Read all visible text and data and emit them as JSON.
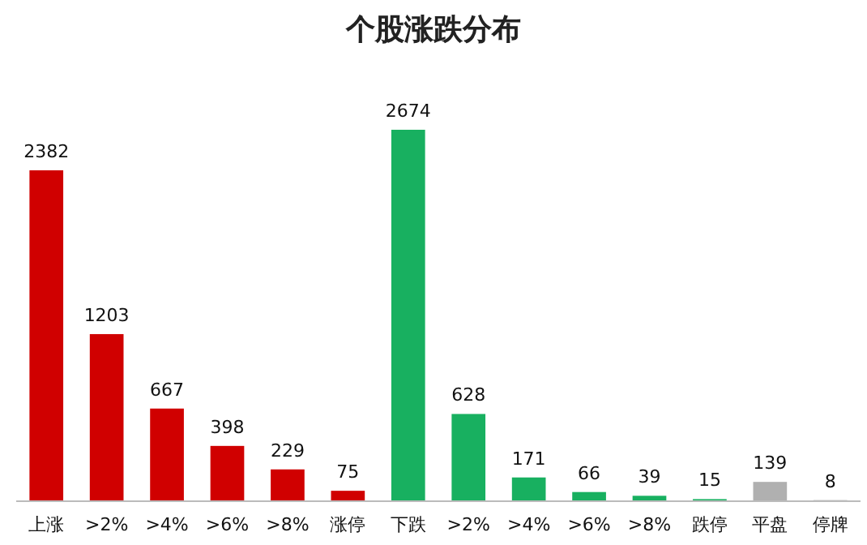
{
  "chart_data": {
    "type": "bar",
    "title": "个股涨跌分布",
    "categories": [
      "上涨",
      ">2%",
      ">4%",
      ">6%",
      ">8%",
      "涨停",
      "下跌",
      ">2%",
      ">4%",
      ">6%",
      ">8%",
      "跌停",
      "平盘",
      "停牌"
    ],
    "values": [
      2382,
      1203,
      667,
      398,
      229,
      75,
      2674,
      628,
      171,
      66,
      39,
      15,
      139,
      8
    ],
    "colors": [
      "#d00000",
      "#d00000",
      "#d00000",
      "#d00000",
      "#d00000",
      "#d00000",
      "#18b060",
      "#18b060",
      "#18b060",
      "#18b060",
      "#18b060",
      "#18b060",
      "#b0b0b0",
      "#b0b0b0"
    ],
    "data_labels": true
  }
}
